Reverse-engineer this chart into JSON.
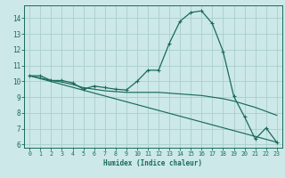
{
  "title": "",
  "xlabel": "Humidex (Indice chaleur)",
  "ylabel": "",
  "background_color": "#cce8e8",
  "grid_color": "#aacece",
  "line_color": "#1a6b5a",
  "xlim": [
    -0.5,
    23.5
  ],
  "ylim": [
    5.8,
    14.8
  ],
  "yticks": [
    6,
    7,
    8,
    9,
    10,
    11,
    12,
    13,
    14
  ],
  "xticks": [
    0,
    1,
    2,
    3,
    4,
    5,
    6,
    7,
    8,
    9,
    10,
    11,
    12,
    13,
    14,
    15,
    16,
    17,
    18,
    19,
    20,
    21,
    22,
    23
  ],
  "line1_x": [
    0,
    1,
    2,
    3,
    4,
    5,
    6,
    7,
    8,
    9,
    10,
    11,
    12,
    13,
    14,
    15,
    16,
    17,
    18,
    19,
    20,
    21,
    22,
    23
  ],
  "line1_y": [
    10.35,
    10.35,
    10.05,
    10.05,
    9.9,
    9.5,
    9.7,
    9.6,
    9.5,
    9.45,
    10.0,
    10.7,
    10.7,
    12.4,
    13.8,
    14.35,
    14.45,
    13.65,
    11.9,
    9.05,
    7.75,
    6.35,
    7.05,
    6.15
  ],
  "line2_x": [
    0,
    23
  ],
  "line2_y": [
    10.35,
    6.15
  ],
  "line3_x": [
    0,
    1,
    2,
    3,
    4,
    5,
    6,
    7,
    8,
    9,
    10,
    11,
    12,
    13,
    14,
    15,
    16,
    17,
    18,
    19,
    20,
    21,
    22,
    23
  ],
  "line3_y": [
    10.35,
    10.2,
    10.05,
    9.95,
    9.8,
    9.6,
    9.5,
    9.4,
    9.35,
    9.3,
    9.3,
    9.3,
    9.3,
    9.25,
    9.2,
    9.15,
    9.1,
    9.0,
    8.9,
    8.75,
    8.55,
    8.35,
    8.1,
    7.85
  ]
}
